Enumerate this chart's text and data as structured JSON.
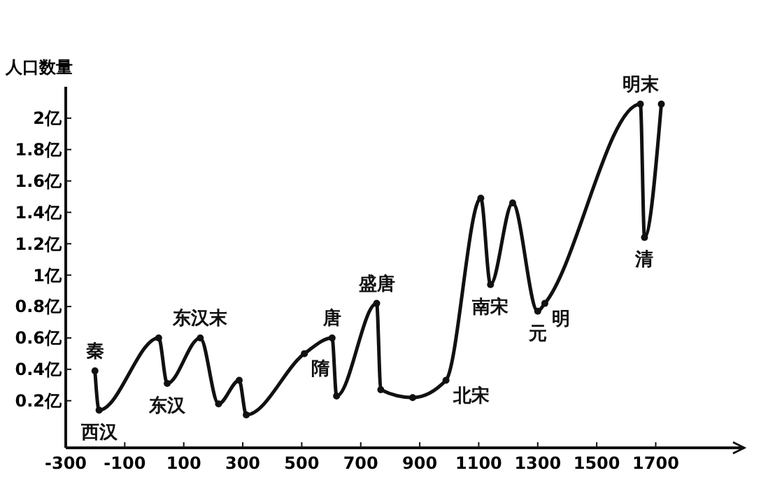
{
  "chart_data": {
    "type": "line",
    "ylabel": "人口数量",
    "x": [
      -201,
      -187,
      15,
      44,
      156,
      218,
      288,
      312,
      509,
      603,
      618,
      754,
      768,
      876,
      989,
      1107,
      1140,
      1215,
      1300,
      1324,
      1648,
      1662,
      1719
    ],
    "series": [
      {
        "color": "#111111",
        "values": [
          0.39,
          0.14,
          0.6,
          0.31,
          0.6,
          0.18,
          0.33,
          0.11,
          0.5,
          0.6,
          0.23,
          0.82,
          0.27,
          0.22,
          0.33,
          1.49,
          0.94,
          1.46,
          0.77,
          0.82,
          2.09,
          1.24,
          2.09
        ]
      }
    ],
    "xlim": [
      -300,
      2000
    ],
    "xticks": [
      -300,
      -100,
      100,
      300,
      500,
      700,
      900,
      1100,
      1300,
      1500,
      1700
    ],
    "ylim": [
      -0.1,
      2.2
    ],
    "yticks": [
      {
        "value": 0.2,
        "label": "0.2亿"
      },
      {
        "value": 0.4,
        "label": "0.4亿"
      },
      {
        "value": 0.6,
        "label": "0.6亿"
      },
      {
        "value": 0.8,
        "label": "0.8亿"
      },
      {
        "value": 1,
        "label": "1亿"
      },
      {
        "value": 1.2,
        "label": "1.2亿"
      },
      {
        "value": 1.4,
        "label": "1.4亿"
      },
      {
        "value": 1.6,
        "label": "1.6亿"
      },
      {
        "value": 1.8,
        "label": "1.8亿"
      },
      {
        "value": 2,
        "label": "2亿"
      }
    ],
    "grid": false,
    "marker": "circle",
    "line_style": "solid",
    "annotations": [
      {
        "text": "秦",
        "x": -201,
        "y": 0.39
      },
      {
        "text": "西汉",
        "x": -187,
        "y": 0.14
      },
      {
        "text": "东汉",
        "x": 44,
        "y": 0.31
      },
      {
        "text": "东汉末",
        "x": 156,
        "y": 0.6
      },
      {
        "text": "隋",
        "x": 509,
        "y": 0.5
      },
      {
        "text": "唐",
        "x": 603,
        "y": 0.6
      },
      {
        "text": "盛唐",
        "x": 754,
        "y": 0.82
      },
      {
        "text": "北宋",
        "x": 989,
        "y": 0.33
      },
      {
        "text": "南宋",
        "x": 1140,
        "y": 0.94
      },
      {
        "text": "元",
        "x": 1300,
        "y": 0.77
      },
      {
        "text": "明",
        "x": 1324,
        "y": 0.82
      },
      {
        "text": "明末",
        "x": 1648,
        "y": 2.09
      },
      {
        "text": "清",
        "x": 1662,
        "y": 1.24
      }
    ]
  }
}
